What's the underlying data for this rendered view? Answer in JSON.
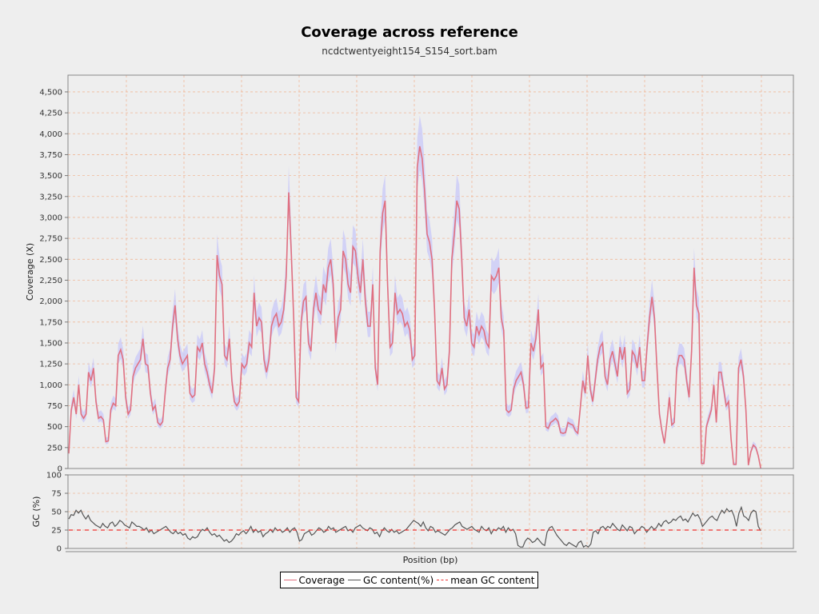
{
  "chart_data": [
    {
      "type": "line",
      "title": "Coverage across reference",
      "subtitle": "ncdctwentyeight154_S154_sort.bam",
      "xlabel": "Position (bp)",
      "ylabel": "Coverage (X)",
      "ylim": [
        0,
        4700
      ],
      "yticks": [
        0,
        250,
        500,
        750,
        1000,
        1250,
        1500,
        1750,
        2000,
        2250,
        2500,
        2750,
        3000,
        3250,
        3500,
        3750,
        4000,
        4250,
        4500
      ],
      "ytick_labels": [
        "0",
        "250",
        "500",
        "750",
        "1,000",
        "1,250",
        "1,500",
        "1,750",
        "2,000",
        "2,250",
        "2,500",
        "2,750",
        "3,000",
        "3,250",
        "3,500",
        "3,750",
        "4,000",
        "4,250",
        "4,500"
      ],
      "grid": true,
      "xrange_fraction_of_axis": 0.955,
      "series": [
        {
          "name": "Coverage",
          "color": "#e07080",
          "band_color": "#c8c8f8",
          "values": [
            180,
            700,
            850,
            650,
            1000,
            650,
            600,
            650,
            1150,
            1050,
            1200,
            800,
            600,
            620,
            580,
            320,
            330,
            700,
            780,
            750,
            1350,
            1420,
            1300,
            850,
            650,
            700,
            1100,
            1200,
            1250,
            1300,
            1550,
            1250,
            1230,
            900,
            700,
            750,
            550,
            520,
            560,
            900,
            1200,
            1300,
            1700,
            1950,
            1550,
            1350,
            1250,
            1300,
            1350,
            900,
            850,
            880,
            1450,
            1400,
            1500,
            1250,
            1150,
            1000,
            900,
            1200,
            2550,
            2300,
            2200,
            1350,
            1300,
            1550,
            1050,
            800,
            750,
            800,
            1250,
            1200,
            1250,
            1500,
            1450,
            2100,
            1700,
            1800,
            1750,
            1300,
            1150,
            1300,
            1700,
            1800,
            1850,
            1700,
            1750,
            1900,
            2300,
            3300,
            2600,
            1800,
            850,
            800,
            1750,
            2000,
            2050,
            1500,
            1400,
            1900,
            2100,
            1900,
            1850,
            2200,
            2100,
            2400,
            2500,
            2200,
            1500,
            1800,
            1900,
            2600,
            2500,
            2200,
            2100,
            2650,
            2600,
            2300,
            2100,
            2500,
            2000,
            1700,
            1700,
            2200,
            1200,
            1000,
            2600,
            3050,
            3200,
            2200,
            1450,
            1500,
            2100,
            1850,
            1900,
            1850,
            1700,
            1750,
            1650,
            1300,
            1350,
            3600,
            3850,
            3700,
            3300,
            2800,
            2700,
            2500,
            1900,
            1050,
            1000,
            1200,
            950,
            1000,
            1400,
            2500,
            2800,
            3200,
            3100,
            2500,
            1800,
            1700,
            1900,
            1500,
            1450,
            1700,
            1600,
            1700,
            1650,
            1500,
            1450,
            2300,
            2250,
            2300,
            2400,
            1800,
            1650,
            700,
            670,
            700,
            950,
            1050,
            1100,
            1150,
            1000,
            720,
            730,
            1500,
            1400,
            1550,
            1900,
            1200,
            1250,
            500,
            480,
            550,
            570,
            600,
            560,
            430,
            420,
            430,
            550,
            530,
            520,
            450,
            420,
            730,
            1050,
            900,
            1350,
            950,
            800,
            1050,
            1300,
            1450,
            1500,
            1100,
            1000,
            1300,
            1400,
            1250,
            1100,
            1450,
            1300,
            1450,
            900,
            950,
            1400,
            1350,
            1200,
            1450,
            1050,
            1050,
            1450,
            1800,
            2050,
            1800,
            1200,
            650,
            450,
            300,
            550,
            850,
            520,
            550,
            1200,
            1350,
            1350,
            1300,
            1050,
            850,
            1400,
            2400,
            1950,
            1850,
            60,
            60,
            500,
            600,
            700,
            1000,
            550,
            1150,
            1150,
            950,
            750,
            800,
            350,
            50,
            50,
            1200,
            1300,
            1100,
            700,
            40,
            200,
            280,
            250,
            150,
            0
          ]
        }
      ]
    },
    {
      "type": "line",
      "ylabel": "GC (%)",
      "ylim": [
        0,
        100
      ],
      "yticks": [
        0,
        25,
        50,
        75,
        100
      ],
      "ytick_labels": [
        "0",
        "25",
        "50",
        "75",
        "100"
      ],
      "grid": true,
      "series": [
        {
          "name": "GC content(%)",
          "color": "#555555",
          "values": [
            40,
            46,
            45,
            52,
            48,
            52,
            45,
            40,
            45,
            38,
            35,
            32,
            30,
            28,
            34,
            30,
            28,
            34,
            36,
            30,
            33,
            38,
            36,
            32,
            30,
            28,
            36,
            33,
            30,
            30,
            28,
            25,
            28,
            22,
            25,
            20,
            22,
            24,
            26,
            28,
            30,
            26,
            22,
            20,
            24,
            20,
            22,
            18,
            20,
            14,
            12,
            16,
            14,
            16,
            22,
            26,
            24,
            28,
            22,
            18,
            20,
            16,
            18,
            14,
            10,
            12,
            8,
            10,
            14,
            20,
            18,
            22,
            24,
            20,
            24,
            30,
            22,
            26,
            22,
            24,
            16,
            20,
            22,
            26,
            22,
            28,
            24,
            26,
            22,
            24,
            28,
            22,
            26,
            28,
            22,
            10,
            12,
            20,
            22,
            24,
            18,
            20,
            24,
            28,
            26,
            22,
            24,
            30,
            26,
            28,
            22,
            24,
            26,
            28,
            30,
            24,
            26,
            22,
            28,
            30,
            32,
            28,
            26,
            24,
            28,
            26,
            20,
            22,
            16,
            24,
            28,
            24,
            22,
            26,
            22,
            24,
            20,
            22,
            24,
            26,
            30,
            34,
            38,
            36,
            34,
            30,
            36,
            28,
            24,
            30,
            28,
            22,
            24,
            22,
            20,
            18,
            22,
            26,
            28,
            32,
            34,
            36,
            30,
            28,
            26,
            28,
            30,
            26,
            24,
            22,
            30,
            26,
            24,
            28,
            20,
            26,
            24,
            28,
            26,
            30,
            22,
            28,
            24,
            26,
            20,
            4,
            2,
            2,
            10,
            14,
            12,
            8,
            10,
            14,
            10,
            6,
            4,
            22,
            28,
            30,
            24,
            18,
            14,
            10,
            6,
            4,
            8,
            6,
            4,
            2,
            8,
            10,
            2,
            4,
            2,
            6,
            22,
            24,
            20,
            28,
            30,
            26,
            30,
            28,
            34,
            30,
            26,
            24,
            32,
            28,
            24,
            30,
            28,
            20,
            24,
            26,
            30,
            28,
            22,
            26,
            30,
            26,
            28,
            34,
            30,
            36,
            38,
            34,
            36,
            40,
            38,
            42,
            44,
            38,
            40,
            36,
            42,
            48,
            44,
            46,
            40,
            30,
            34,
            38,
            42,
            44,
            40,
            38,
            46,
            52,
            48,
            54,
            50,
            52,
            44,
            30,
            48,
            56,
            44,
            42,
            38,
            48,
            52,
            50,
            30,
            24
          ]
        },
        {
          "name": "mean GC content",
          "color": "#ee3333",
          "dashed": true,
          "values": [
            25
          ]
        }
      ]
    }
  ],
  "legend": {
    "coverage": "Coverage",
    "gc": "GC content(%)",
    "mean_gc": "mean GC content"
  }
}
